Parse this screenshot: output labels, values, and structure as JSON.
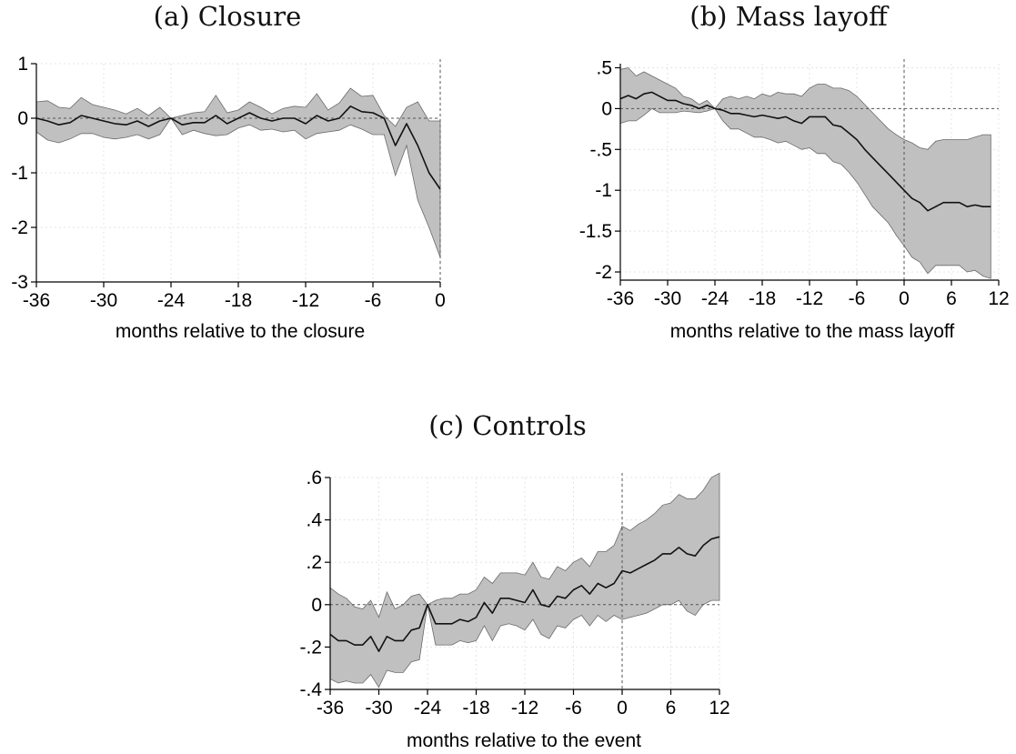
{
  "chart_data": [
    {
      "type": "line",
      "title": "(a) Closure",
      "xlabel": "months relative to the closure",
      "ylabel": "",
      "xlim": [
        -36,
        0
      ],
      "ylim": [
        -3,
        1
      ],
      "xticks": [
        -36,
        -30,
        -24,
        -18,
        -12,
        -6,
        0
      ],
      "xtick_labels": [
        "-36",
        "-30",
        "-24",
        "-18",
        "-12",
        "-6",
        "0"
      ],
      "yticks": [
        1,
        0,
        -1,
        -2,
        -3
      ],
      "ytick_labels": [
        "1",
        "0",
        "-1",
        "-2",
        "-3"
      ],
      "grid": true,
      "reference_lines": {
        "x": 0,
        "y": 0
      },
      "series": [
        {
          "role": "estimate",
          "x": [
            -36,
            -35,
            -34,
            -33,
            -32,
            -31,
            -30,
            -29,
            -28,
            -27,
            -26,
            -25,
            -24,
            -23,
            -22,
            -21,
            -20,
            -19,
            -18,
            -17,
            -16,
            -15,
            -14,
            -13,
            -12,
            -11,
            -10,
            -9,
            -8,
            -7,
            -6,
            -5,
            -4,
            -3,
            -2,
            -1,
            0
          ],
          "y": [
            0.0,
            -0.05,
            -0.12,
            -0.08,
            0.05,
            0.0,
            -0.05,
            -0.1,
            -0.12,
            -0.05,
            -0.15,
            -0.05,
            0.0,
            -0.12,
            -0.08,
            -0.08,
            0.05,
            -0.1,
            0.0,
            0.1,
            0.0,
            -0.05,
            0.0,
            0.0,
            -0.1,
            0.05,
            -0.05,
            0.0,
            0.22,
            0.12,
            0.1,
            0.0,
            -0.5,
            -0.1,
            -0.5,
            -1.0,
            -1.3
          ]
        },
        {
          "role": "ci_upper",
          "x": [
            -36,
            -35,
            -34,
            -33,
            -32,
            -31,
            -30,
            -29,
            -28,
            -27,
            -26,
            -25,
            -24,
            -23,
            -22,
            -21,
            -20,
            -19,
            -18,
            -17,
            -16,
            -15,
            -14,
            -13,
            -12,
            -11,
            -10,
            -9,
            -8,
            -7,
            -6,
            -5,
            -4,
            -3,
            -2,
            -1,
            0
          ],
          "y": [
            0.3,
            0.32,
            0.2,
            0.18,
            0.38,
            0.25,
            0.2,
            0.15,
            0.08,
            0.18,
            0.05,
            0.2,
            0.0,
            0.05,
            0.1,
            0.12,
            0.42,
            0.1,
            0.15,
            0.3,
            0.2,
            0.08,
            0.18,
            0.22,
            0.2,
            0.45,
            0.15,
            0.28,
            0.55,
            0.4,
            0.42,
            0.05,
            -0.15,
            0.2,
            0.3,
            -0.05,
            -0.05
          ]
        },
        {
          "role": "ci_lower",
          "x": [
            -36,
            -35,
            -34,
            -33,
            -32,
            -31,
            -30,
            -29,
            -28,
            -27,
            -26,
            -25,
            -24,
            -23,
            -22,
            -21,
            -20,
            -19,
            -18,
            -17,
            -16,
            -15,
            -14,
            -13,
            -12,
            -11,
            -10,
            -9,
            -8,
            -7,
            -6,
            -5,
            -4,
            -3,
            -2,
            -1,
            0
          ],
          "y": [
            -0.25,
            -0.4,
            -0.45,
            -0.38,
            -0.28,
            -0.28,
            -0.35,
            -0.38,
            -0.35,
            -0.3,
            -0.38,
            -0.3,
            0.0,
            -0.3,
            -0.22,
            -0.28,
            -0.32,
            -0.3,
            -0.18,
            -0.12,
            -0.22,
            -0.2,
            -0.25,
            -0.22,
            -0.38,
            -0.28,
            -0.25,
            -0.22,
            -0.12,
            -0.2,
            -0.3,
            -0.3,
            -1.05,
            -0.5,
            -1.5,
            -2.0,
            -2.55
          ]
        }
      ]
    },
    {
      "type": "line",
      "title": "(b) Mass layoff",
      "xlabel": "months relative to the mass layoff",
      "ylabel": "",
      "xlim": [
        -36,
        12
      ],
      "ylim": [
        -2.1,
        0.55
      ],
      "xticks": [
        -36,
        -30,
        -24,
        -18,
        -12,
        -6,
        0,
        6,
        12
      ],
      "xtick_labels": [
        "-36",
        "-30",
        "-24",
        "-18",
        "-12",
        "-6",
        "0",
        "6",
        "12"
      ],
      "yticks": [
        0.5,
        0,
        -0.5,
        -1,
        -1.5,
        -2
      ],
      "ytick_labels": [
        ".5",
        "0",
        "-.5",
        "-1",
        "-1.5",
        "-2"
      ],
      "grid": true,
      "reference_lines": {
        "x": 0,
        "y": 0
      },
      "series": [
        {
          "role": "estimate",
          "x": [
            -36,
            -35,
            -34,
            -33,
            -32,
            -31,
            -30,
            -29,
            -28,
            -27,
            -26,
            -25,
            -24,
            -23,
            -22,
            -21,
            -20,
            -19,
            -18,
            -17,
            -16,
            -15,
            -14,
            -13,
            -12,
            -11,
            -10,
            -9,
            -8,
            -7,
            -6,
            -5,
            -4,
            -3,
            -2,
            -1,
            0,
            1,
            2,
            3,
            4,
            5,
            6,
            7,
            8,
            9,
            10,
            11
          ],
          "y": [
            0.12,
            0.16,
            0.12,
            0.18,
            0.2,
            0.15,
            0.1,
            0.1,
            0.06,
            0.04,
            0.0,
            0.04,
            0.0,
            -0.02,
            -0.06,
            -0.06,
            -0.08,
            -0.1,
            -0.08,
            -0.1,
            -0.12,
            -0.1,
            -0.15,
            -0.18,
            -0.1,
            -0.1,
            -0.1,
            -0.2,
            -0.22,
            -0.3,
            -0.38,
            -0.5,
            -0.6,
            -0.7,
            -0.8,
            -0.9,
            -1.0,
            -1.1,
            -1.15,
            -1.25,
            -1.2,
            -1.15,
            -1.15,
            -1.15,
            -1.2,
            -1.18,
            -1.2,
            -1.2
          ]
        },
        {
          "role": "ci_upper",
          "x": [
            -36,
            -35,
            -34,
            -33,
            -32,
            -31,
            -30,
            -29,
            -28,
            -27,
            -26,
            -25,
            -24,
            -23,
            -22,
            -21,
            -20,
            -19,
            -18,
            -17,
            -16,
            -15,
            -14,
            -13,
            -12,
            -11,
            -10,
            -9,
            -8,
            -7,
            -6,
            -5,
            -4,
            -3,
            -2,
            -1,
            0,
            1,
            2,
            3,
            4,
            5,
            6,
            7,
            8,
            9,
            10,
            11
          ],
          "y": [
            0.48,
            0.5,
            0.4,
            0.45,
            0.4,
            0.35,
            0.3,
            0.25,
            0.15,
            0.12,
            0.05,
            0.1,
            0.0,
            0.12,
            0.15,
            0.12,
            0.15,
            0.12,
            0.18,
            0.15,
            0.2,
            0.18,
            0.18,
            0.15,
            0.25,
            0.3,
            0.3,
            0.25,
            0.25,
            0.22,
            0.15,
            0.05,
            -0.05,
            -0.15,
            -0.25,
            -0.32,
            -0.38,
            -0.42,
            -0.48,
            -0.5,
            -0.4,
            -0.38,
            -0.38,
            -0.38,
            -0.38,
            -0.35,
            -0.32,
            -0.32
          ]
        },
        {
          "role": "ci_lower",
          "x": [
            -36,
            -35,
            -34,
            -33,
            -32,
            -31,
            -30,
            -29,
            -28,
            -27,
            -26,
            -25,
            -24,
            -23,
            -22,
            -21,
            -20,
            -19,
            -18,
            -17,
            -16,
            -15,
            -14,
            -13,
            -12,
            -11,
            -10,
            -9,
            -8,
            -7,
            -6,
            -5,
            -4,
            -3,
            -2,
            -1,
            0,
            1,
            2,
            3,
            4,
            5,
            6,
            7,
            8,
            9,
            10,
            11
          ],
          "y": [
            -0.18,
            -0.15,
            -0.15,
            -0.08,
            0.0,
            -0.05,
            -0.05,
            -0.05,
            -0.03,
            -0.04,
            -0.05,
            -0.03,
            0.0,
            -0.15,
            -0.25,
            -0.25,
            -0.3,
            -0.35,
            -0.35,
            -0.38,
            -0.42,
            -0.4,
            -0.45,
            -0.5,
            -0.48,
            -0.55,
            -0.55,
            -0.65,
            -0.68,
            -0.78,
            -0.9,
            -1.05,
            -1.2,
            -1.3,
            -1.4,
            -1.55,
            -1.68,
            -1.82,
            -1.88,
            -2.02,
            -1.92,
            -1.92,
            -1.92,
            -1.92,
            -2.0,
            -1.98,
            -2.05,
            -2.08
          ]
        }
      ]
    },
    {
      "type": "line",
      "title": "(c) Controls",
      "xlabel": "months relative to the event",
      "ylabel": "",
      "xlim": [
        -36,
        12
      ],
      "ylim": [
        -0.4,
        0.6
      ],
      "xticks": [
        -36,
        -30,
        -24,
        -18,
        -12,
        -6,
        0,
        6,
        12
      ],
      "xtick_labels": [
        "-36",
        "-30",
        "-24",
        "-18",
        "-12",
        "-6",
        "0",
        "6",
        "12"
      ],
      "yticks": [
        0.6,
        0.4,
        0.2,
        0,
        -0.2,
        -0.4
      ],
      "ytick_labels": [
        ".6",
        ".4",
        ".2",
        "0",
        "-.2",
        "-.4"
      ],
      "grid": true,
      "reference_lines": {
        "x": 0,
        "y": 0
      },
      "series": [
        {
          "role": "estimate",
          "x": [
            -36,
            -35,
            -34,
            -33,
            -32,
            -31,
            -30,
            -29,
            -28,
            -27,
            -26,
            -25,
            -24,
            -23,
            -22,
            -21,
            -20,
            -19,
            -18,
            -17,
            -16,
            -15,
            -14,
            -13,
            -12,
            -11,
            -10,
            -9,
            -8,
            -7,
            -6,
            -5,
            -4,
            -3,
            -2,
            -1,
            0,
            1,
            2,
            3,
            4,
            5,
            6,
            7,
            8,
            9,
            10,
            11,
            12
          ],
          "y": [
            -0.14,
            -0.17,
            -0.17,
            -0.19,
            -0.19,
            -0.15,
            -0.22,
            -0.15,
            -0.17,
            -0.17,
            -0.12,
            -0.11,
            0.0,
            -0.09,
            -0.09,
            -0.09,
            -0.07,
            -0.08,
            -0.06,
            0.01,
            -0.04,
            0.03,
            0.03,
            0.02,
            0.01,
            0.07,
            0.0,
            -0.01,
            0.04,
            0.03,
            0.07,
            0.09,
            0.05,
            0.1,
            0.08,
            0.1,
            0.16,
            0.15,
            0.17,
            0.19,
            0.21,
            0.24,
            0.24,
            0.27,
            0.24,
            0.23,
            0.28,
            0.31,
            0.32
          ]
        },
        {
          "role": "ci_upper",
          "x": [
            -36,
            -35,
            -34,
            -33,
            -32,
            -31,
            -30,
            -29,
            -28,
            -27,
            -26,
            -25,
            -24,
            -23,
            -22,
            -21,
            -20,
            -19,
            -18,
            -17,
            -16,
            -15,
            -14,
            -13,
            -12,
            -11,
            -10,
            -9,
            -8,
            -7,
            -6,
            -5,
            -4,
            -3,
            -2,
            -1,
            0,
            1,
            2,
            3,
            4,
            5,
            6,
            7,
            8,
            9,
            10,
            11,
            12
          ],
          "y": [
            0.08,
            0.05,
            0.03,
            -0.01,
            -0.02,
            0.02,
            -0.06,
            0.06,
            -0.02,
            0.0,
            0.04,
            0.05,
            0.0,
            0.02,
            0.03,
            0.03,
            0.05,
            0.05,
            0.07,
            0.13,
            0.1,
            0.15,
            0.15,
            0.15,
            0.14,
            0.2,
            0.13,
            0.12,
            0.18,
            0.16,
            0.2,
            0.22,
            0.18,
            0.25,
            0.25,
            0.28,
            0.37,
            0.35,
            0.38,
            0.4,
            0.43,
            0.47,
            0.48,
            0.52,
            0.5,
            0.5,
            0.54,
            0.6,
            0.62
          ]
        },
        {
          "role": "ci_lower",
          "x": [
            -36,
            -35,
            -34,
            -33,
            -32,
            -31,
            -30,
            -29,
            -28,
            -27,
            -26,
            -25,
            -24,
            -23,
            -22,
            -21,
            -20,
            -19,
            -18,
            -17,
            -16,
            -15,
            -14,
            -13,
            -12,
            -11,
            -10,
            -9,
            -8,
            -7,
            -6,
            -5,
            -4,
            -3,
            -2,
            -1,
            0,
            1,
            2,
            3,
            4,
            5,
            6,
            7,
            8,
            9,
            10,
            11,
            12
          ],
          "y": [
            -0.35,
            -0.37,
            -0.36,
            -0.37,
            -0.37,
            -0.33,
            -0.39,
            -0.31,
            -0.32,
            -0.32,
            -0.27,
            -0.26,
            0.0,
            -0.19,
            -0.19,
            -0.19,
            -0.17,
            -0.18,
            -0.17,
            -0.1,
            -0.17,
            -0.1,
            -0.09,
            -0.1,
            -0.12,
            -0.07,
            -0.14,
            -0.16,
            -0.1,
            -0.11,
            -0.07,
            -0.05,
            -0.1,
            -0.05,
            -0.08,
            -0.05,
            -0.07,
            -0.06,
            -0.05,
            -0.04,
            -0.02,
            0.0,
            0.0,
            0.02,
            -0.03,
            -0.05,
            0.0,
            0.02,
            0.02
          ]
        }
      ]
    }
  ],
  "style": {
    "band_color": "#c0c0c0",
    "band_edge_color": "#6a6a6a",
    "line_color": "#111111",
    "axis_color": "#000000",
    "grid_color": "#e4e4e4",
    "reference_line_color": "#555555"
  }
}
